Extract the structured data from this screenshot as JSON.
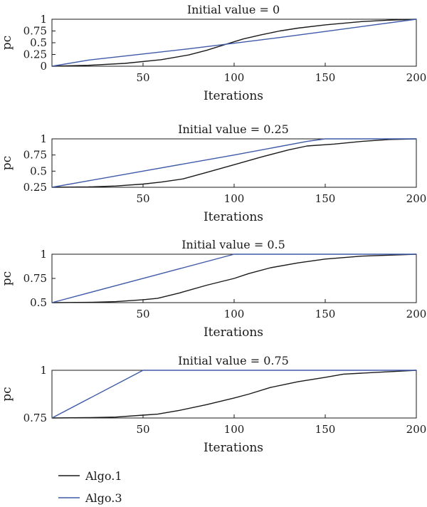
{
  "chart_data": [
    {
      "type": "line",
      "title": "Initial value = 0",
      "xlabel": "Iterations",
      "ylabel": "pc",
      "xlim": [
        0,
        200
      ],
      "ylim": [
        0,
        1
      ],
      "xticks": [
        50,
        100,
        150,
        200
      ],
      "yticks": [
        0,
        0.25,
        0.5,
        0.75,
        1
      ],
      "ytick_labels": [
        "0",
        "0.25",
        "0.5",
        "0.75",
        "1"
      ],
      "grid": false,
      "series": [
        {
          "name": "Algo.1",
          "color": "#1a1a1a",
          "x": [
            0,
            20,
            40,
            60,
            75,
            85,
            95,
            105,
            115,
            125,
            135,
            150,
            170,
            185,
            200
          ],
          "y": [
            0,
            0.02,
            0.06,
            0.14,
            0.24,
            0.34,
            0.46,
            0.58,
            0.67,
            0.75,
            0.81,
            0.88,
            0.95,
            0.98,
            1.0
          ]
        },
        {
          "name": "Algo.3",
          "color": "#3e5aa8",
          "x": [
            0,
            20,
            50,
            75,
            100,
            125,
            150,
            175,
            200
          ],
          "y": [
            0,
            0.13,
            0.26,
            0.37,
            0.49,
            0.61,
            0.74,
            0.87,
            1.0
          ]
        }
      ]
    },
    {
      "type": "line",
      "title": "Initial value = 0.25",
      "xlabel": "Iterations",
      "ylabel": "pc",
      "xlim": [
        0,
        200
      ],
      "ylim": [
        0.25,
        1
      ],
      "xticks": [
        50,
        100,
        150,
        200
      ],
      "yticks": [
        0.25,
        0.5,
        0.75,
        1
      ],
      "ytick_labels": [
        "0.25",
        "0.5",
        "0.75",
        "1"
      ],
      "grid": false,
      "series": [
        {
          "name": "Algo.1",
          "color": "#1a1a1a",
          "x": [
            0,
            20,
            35,
            50,
            60,
            72,
            85,
            100,
            115,
            130,
            140,
            155,
            170,
            185,
            200
          ],
          "y": [
            0.25,
            0.255,
            0.27,
            0.3,
            0.33,
            0.38,
            0.48,
            0.6,
            0.72,
            0.83,
            0.89,
            0.92,
            0.96,
            0.99,
            1.0
          ]
        },
        {
          "name": "Algo.3",
          "color": "#3e5aa8",
          "x": [
            0,
            50,
            100,
            140,
            150,
            200
          ],
          "y": [
            0.25,
            0.5,
            0.75,
            0.96,
            1.0,
            1.0
          ]
        }
      ]
    },
    {
      "type": "line",
      "title": "Initial value = 0.5",
      "xlabel": "Iterations",
      "ylabel": "pc",
      "xlim": [
        0,
        200
      ],
      "ylim": [
        0.5,
        1
      ],
      "xticks": [
        50,
        100,
        150,
        200
      ],
      "yticks": [
        0.5,
        0.75,
        1
      ],
      "ytick_labels": [
        "0.5",
        "0.75",
        "1"
      ],
      "grid": false,
      "series": [
        {
          "name": "Algo.1",
          "color": "#1a1a1a",
          "x": [
            0,
            20,
            35,
            50,
            58,
            70,
            85,
            100,
            108,
            120,
            135,
            150,
            170,
            200
          ],
          "y": [
            0.5,
            0.503,
            0.51,
            0.53,
            0.545,
            0.6,
            0.68,
            0.75,
            0.8,
            0.86,
            0.91,
            0.95,
            0.98,
            1.0
          ]
        },
        {
          "name": "Algo.3",
          "color": "#3e5aa8",
          "x": [
            0,
            100,
            200
          ],
          "y": [
            0.5,
            1.0,
            1.0
          ]
        }
      ]
    },
    {
      "type": "line",
      "title": "Initial value = 0.75",
      "xlabel": "Iterations",
      "ylabel": "pc",
      "xlim": [
        0,
        200
      ],
      "ylim": [
        0.75,
        1
      ],
      "xticks": [
        50,
        100,
        150,
        200
      ],
      "yticks": [
        0.75,
        1
      ],
      "ytick_labels": [
        "0.75",
        "1"
      ],
      "grid": false,
      "series": [
        {
          "name": "Algo.1",
          "color": "#1a1a1a",
          "x": [
            0,
            20,
            35,
            50,
            58,
            70,
            85,
            100,
            108,
            120,
            135,
            150,
            160,
            180,
            200
          ],
          "y": [
            0.75,
            0.752,
            0.755,
            0.765,
            0.77,
            0.79,
            0.82,
            0.855,
            0.875,
            0.91,
            0.94,
            0.963,
            0.98,
            0.99,
            1.0
          ]
        },
        {
          "name": "Algo.3",
          "color": "#3e5aa8",
          "x": [
            0,
            50,
            200
          ],
          "y": [
            0.75,
            1.0,
            1.0
          ]
        }
      ]
    }
  ],
  "legend": {
    "placement": "bottom-left",
    "entries": [
      {
        "label": "Algo.1",
        "color": "#1a1a1a"
      },
      {
        "label": "Algo.3",
        "color": "#3e5aa8"
      }
    ]
  }
}
